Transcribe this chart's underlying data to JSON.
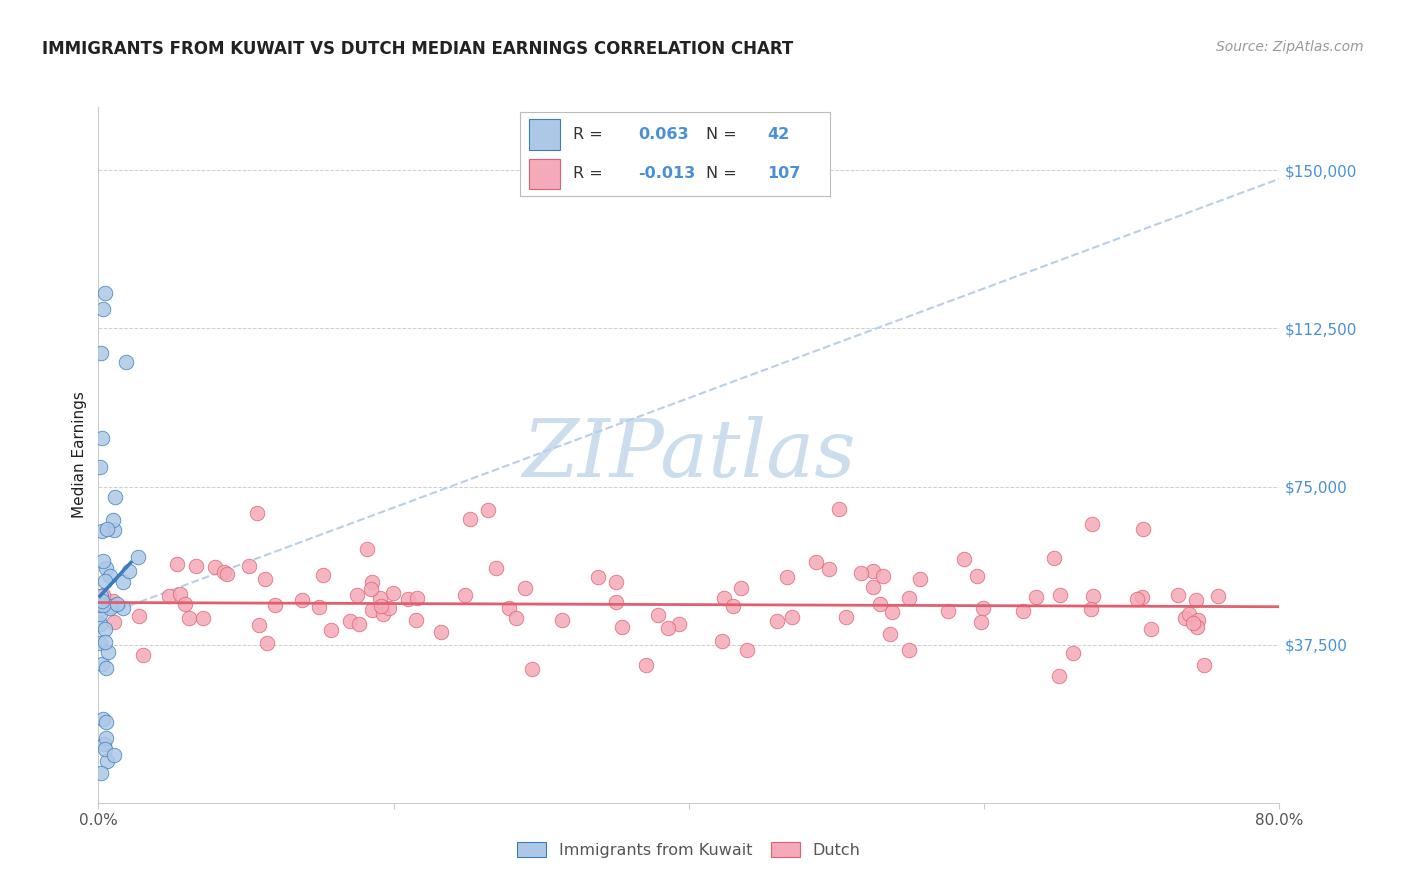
{
  "title": "IMMIGRANTS FROM KUWAIT VS DUTCH MEDIAN EARNINGS CORRELATION CHART",
  "source": "Source: ZipAtlas.com",
  "ylabel": "Median Earnings",
  "yticks": [
    37500,
    75000,
    112500,
    150000
  ],
  "ytick_labels": [
    "$37,500",
    "$75,000",
    "$112,500",
    "$150,000"
  ],
  "xlim": [
    0.0,
    0.8
  ],
  "ylim": [
    0,
    165000
  ],
  "legend_label1": "Immigrants from Kuwait",
  "legend_label2": "Dutch",
  "R1": "0.063",
  "N1": "42",
  "R2": "-0.013",
  "N2": "107",
  "color_blue": "#adc8e6",
  "color_pink": "#f4aab8",
  "line_blue": "#3a7dbf",
  "line_pink": "#e06070",
  "line_dash": "#b8cfe8",
  "watermark_color": "#ccdded",
  "bg": "#ffffff",
  "grid_color": "#d0d0d0",
  "ytick_color": "#4a90d9",
  "text_dark": "#222222",
  "text_mid": "#555555",
  "text_source": "#999999"
}
